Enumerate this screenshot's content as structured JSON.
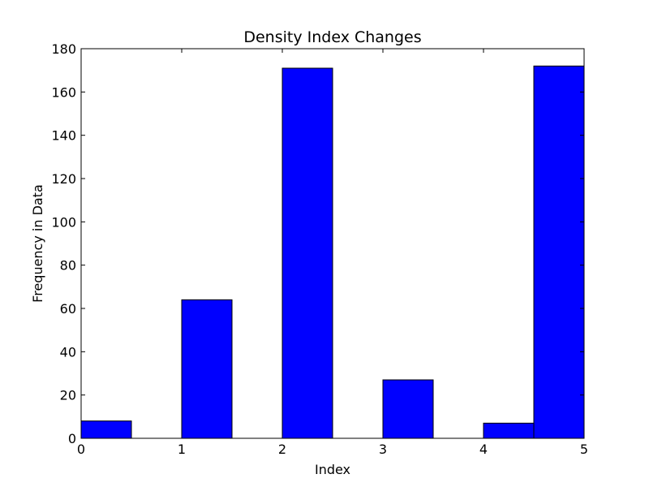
{
  "chart_data": {
    "type": "bar",
    "title": "Density Index Changes",
    "xlabel": "Index",
    "ylabel": "Frequency in Data",
    "xlim": [
      0,
      5
    ],
    "ylim": [
      0,
      180
    ],
    "x_ticks": [
      "0",
      "1",
      "2",
      "3",
      "4",
      "5"
    ],
    "y_ticks": [
      "0",
      "20",
      "40",
      "60",
      "80",
      "100",
      "120",
      "140",
      "160",
      "180"
    ],
    "bins": [
      {
        "start": 0.0,
        "end": 0.5,
        "value": 8
      },
      {
        "start": 1.0,
        "end": 1.5,
        "value": 64
      },
      {
        "start": 2.0,
        "end": 2.5,
        "value": 171
      },
      {
        "start": 3.0,
        "end": 3.5,
        "value": 27
      },
      {
        "start": 4.0,
        "end": 4.5,
        "value": 7
      },
      {
        "start": 4.5,
        "end": 5.0,
        "value": 172
      }
    ],
    "bar_color": "#0000ff",
    "edge_color": "#000000",
    "grid": false,
    "legend": "none"
  }
}
